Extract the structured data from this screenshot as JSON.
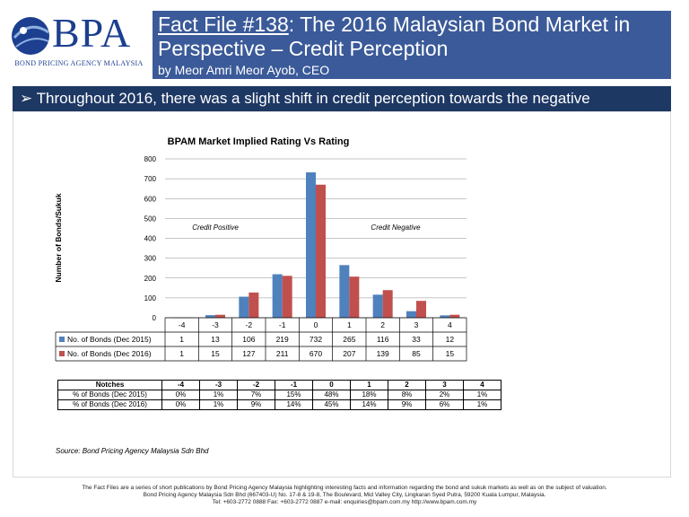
{
  "logo": {
    "text": "BPA",
    "subtitle": "BOND PRICING AGENCY MALAYSIA"
  },
  "header": {
    "title_link": "Fact File #138",
    "title_rest": ": The 2016 Malaysian Bond Market in Perspective – Credit Perception",
    "byline": "by Meor Amri Meor Ayob, CEO"
  },
  "banner": {
    "text": "Throughout 2016, there was a slight shift in credit perception towards the negative"
  },
  "chart_data": {
    "type": "bar",
    "title": "BPAM Market Implied Rating Vs Rating",
    "ylabel": "Number of Bonds/Sukuk",
    "xlabel": "",
    "ylim": [
      0,
      800
    ],
    "yticks": [
      0,
      100,
      200,
      300,
      400,
      500,
      600,
      700,
      800
    ],
    "categories": [
      "-4",
      "-3",
      "-2",
      "-1",
      "0",
      "1",
      "2",
      "3",
      "4"
    ],
    "series": [
      {
        "name": "No. of Bonds (Dec 2015)",
        "color": "#4f81bd",
        "values": [
          1,
          13,
          106,
          219,
          732,
          265,
          116,
          33,
          12
        ]
      },
      {
        "name": "No. of Bonds (Dec 2016)",
        "color": "#c0504d",
        "values": [
          1,
          15,
          127,
          211,
          670,
          207,
          139,
          85,
          15
        ]
      }
    ],
    "annotations": [
      "Credit Positive",
      "Credit Negative"
    ],
    "grid": true
  },
  "pct_table": {
    "header_label": "Notches",
    "notches": [
      "-4",
      "-3",
      "-2",
      "-1",
      "0",
      "1",
      "2",
      "3",
      "4"
    ],
    "rows": [
      {
        "label": "% of Bonds (Dec 2015)",
        "values": [
          "0%",
          "1%",
          "7%",
          "15%",
          "48%",
          "18%",
          "8%",
          "2%",
          "1%"
        ]
      },
      {
        "label": "% of Bonds (Dec 2016)",
        "values": [
          "0%",
          "1%",
          "9%",
          "14%",
          "45%",
          "14%",
          "9%",
          "6%",
          "1%"
        ]
      }
    ]
  },
  "source": "Source: Bond Pricing Agency Malaysia Sdn Bhd",
  "footer": {
    "line1": "The Fact Files are a series of short publications by Bond Pricing Agency Malaysia highlighting interesting facts and information regarding the bond and sukuk markets as well as on the subject of valuation.",
    "line2": "Bond Pricing Agency Malaysia Sdn Bhd (667403-U) No. 17-8 & 19-8, The Boulevard, Mid Valley City, Lingkaran Syed Putra, 59200 Kuala Lumpur, Malaysia.",
    "line3": "Tel: +603-2772 0888 Fax: +603-2772 0887 e-mail: enquiries@bpam.com.my http://www.bpam.com.my"
  }
}
